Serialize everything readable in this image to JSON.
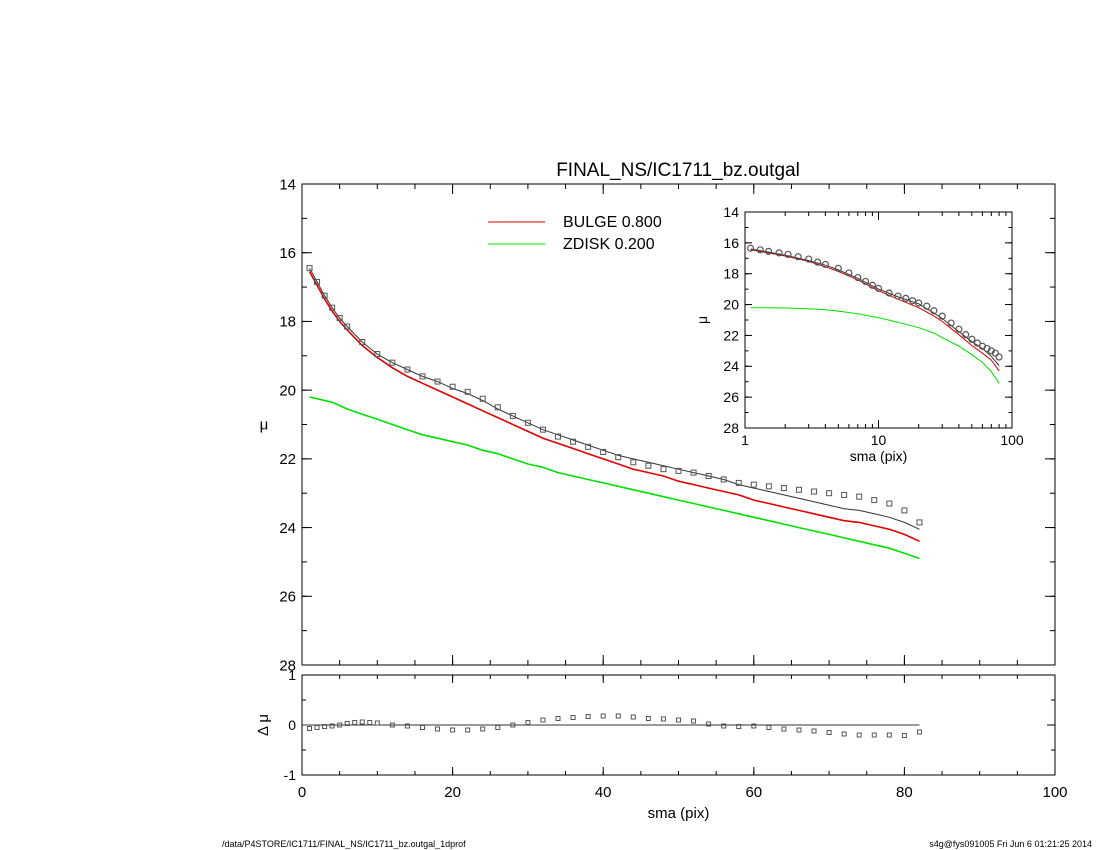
{
  "title": "FINAL_NS/IC1711_bz.outgal",
  "footer": {
    "left": "/data/P4STORE/IC1711/FINAL_NS/IC1711_bz.outgal_1dprof",
    "right": "s4g@fys091005  Fri Jun  6 01:21:25 2014"
  },
  "colors": {
    "data": "#555555",
    "model": "#333333",
    "bulge": "#e00000",
    "zdisk": "#00e000"
  },
  "chart_data": [
    {
      "name": "main-profile",
      "type": "line",
      "xlabel": "sma (pix)",
      "ylabel": "μ",
      "xlim": [
        0,
        100
      ],
      "ylim": [
        28,
        14
      ],
      "xticks": [
        0,
        20,
        40,
        60,
        80,
        100
      ],
      "yticks": [
        14,
        16,
        18,
        20,
        22,
        24,
        26,
        28
      ],
      "legend": [
        {
          "label": "BULGE  0.800",
          "color": "#e00000"
        },
        {
          "label": "ZDISK  0.200",
          "color": "#00e000"
        }
      ],
      "observed": {
        "x": [
          1,
          2,
          3,
          4,
          5,
          6,
          8,
          10,
          12,
          14,
          16,
          18,
          20,
          22,
          24,
          26,
          28,
          30,
          32,
          34,
          36,
          38,
          40,
          42,
          44,
          46,
          48,
          50,
          52,
          54,
          56,
          58,
          60,
          62,
          64,
          66,
          68,
          70,
          72,
          74,
          76,
          78,
          80,
          82
        ],
        "y": [
          16.45,
          16.85,
          17.25,
          17.6,
          17.9,
          18.15,
          18.6,
          18.95,
          19.2,
          19.4,
          19.6,
          19.75,
          19.9,
          20.05,
          20.25,
          20.5,
          20.75,
          20.95,
          21.15,
          21.35,
          21.5,
          21.65,
          21.8,
          21.95,
          22.1,
          22.2,
          22.3,
          22.35,
          22.4,
          22.5,
          22.6,
          22.7,
          22.75,
          22.8,
          22.85,
          22.9,
          22.95,
          23.0,
          23.05,
          23.1,
          23.2,
          23.3,
          23.5,
          23.85
        ]
      },
      "series": [
        {
          "key": "model",
          "x": [
            1,
            2,
            3,
            4,
            5,
            6,
            8,
            10,
            12,
            14,
            16,
            18,
            20,
            22,
            24,
            26,
            28,
            30,
            32,
            34,
            36,
            38,
            40,
            42,
            44,
            46,
            48,
            50,
            52,
            54,
            56,
            58,
            60,
            62,
            64,
            66,
            68,
            70,
            72,
            74,
            76,
            78,
            80,
            82
          ],
          "y": [
            16.45,
            16.85,
            17.25,
            17.6,
            17.9,
            18.15,
            18.6,
            18.95,
            19.2,
            19.4,
            19.6,
            19.75,
            19.95,
            20.1,
            20.3,
            20.55,
            20.75,
            20.95,
            21.15,
            21.3,
            21.45,
            21.6,
            21.75,
            21.9,
            22.0,
            22.1,
            22.2,
            22.3,
            22.4,
            22.5,
            22.6,
            22.75,
            22.85,
            22.95,
            23.05,
            23.15,
            23.25,
            23.35,
            23.45,
            23.5,
            23.6,
            23.7,
            23.85,
            24.05
          ]
        },
        {
          "key": "bulge",
          "x": [
            1,
            2,
            3,
            4,
            5,
            6,
            8,
            10,
            12,
            14,
            16,
            18,
            20,
            22,
            24,
            26,
            28,
            30,
            32,
            34,
            36,
            38,
            40,
            42,
            44,
            46,
            48,
            50,
            52,
            54,
            56,
            58,
            60,
            62,
            64,
            66,
            68,
            70,
            72,
            74,
            76,
            78,
            80,
            82
          ],
          "y": [
            16.55,
            16.95,
            17.35,
            17.7,
            18.0,
            18.25,
            18.7,
            19.05,
            19.35,
            19.6,
            19.8,
            20.0,
            20.2,
            20.4,
            20.6,
            20.8,
            21.0,
            21.2,
            21.4,
            21.55,
            21.7,
            21.85,
            22.0,
            22.15,
            22.3,
            22.4,
            22.5,
            22.65,
            22.75,
            22.85,
            22.95,
            23.05,
            23.2,
            23.3,
            23.4,
            23.5,
            23.6,
            23.7,
            23.8,
            23.85,
            23.95,
            24.05,
            24.2,
            24.4
          ]
        },
        {
          "key": "zdisk",
          "x": [
            1,
            2,
            3,
            4,
            5,
            6,
            8,
            10,
            12,
            14,
            16,
            18,
            20,
            22,
            24,
            26,
            28,
            30,
            32,
            34,
            36,
            38,
            40,
            42,
            44,
            46,
            48,
            50,
            52,
            54,
            56,
            58,
            60,
            62,
            64,
            66,
            68,
            70,
            72,
            74,
            76,
            78,
            80,
            82
          ],
          "y": [
            20.2,
            20.25,
            20.3,
            20.35,
            20.45,
            20.55,
            20.7,
            20.85,
            21.0,
            21.15,
            21.3,
            21.4,
            21.5,
            21.6,
            21.75,
            21.85,
            22.0,
            22.15,
            22.25,
            22.4,
            22.5,
            22.6,
            22.7,
            22.8,
            22.9,
            23.0,
            23.1,
            23.2,
            23.3,
            23.4,
            23.5,
            23.6,
            23.7,
            23.8,
            23.9,
            24.0,
            24.1,
            24.2,
            24.3,
            24.4,
            24.5,
            24.6,
            24.75,
            24.9
          ]
        }
      ]
    },
    {
      "name": "residual",
      "type": "scatter",
      "xlabel": "sma (pix)",
      "ylabel": "Δ μ",
      "xlim": [
        0,
        100
      ],
      "ylim": [
        -1,
        1
      ],
      "xticks": [
        0,
        20,
        40,
        60,
        80,
        100
      ],
      "yticks": [
        -1,
        0,
        1
      ],
      "x": [
        1,
        2,
        3,
        4,
        5,
        6,
        7,
        8,
        9,
        10,
        12,
        14,
        16,
        18,
        20,
        22,
        24,
        26,
        28,
        30,
        32,
        34,
        36,
        38,
        40,
        42,
        44,
        46,
        48,
        50,
        52,
        54,
        56,
        58,
        60,
        62,
        64,
        66,
        68,
        70,
        72,
        74,
        76,
        78,
        80,
        82
      ],
      "y": [
        -0.07,
        -0.05,
        -0.03,
        -0.02,
        0.0,
        0.03,
        0.05,
        0.06,
        0.05,
        0.04,
        0.0,
        -0.02,
        -0.05,
        -0.08,
        -0.1,
        -0.1,
        -0.08,
        -0.05,
        0.0,
        0.05,
        0.1,
        0.13,
        0.15,
        0.17,
        0.18,
        0.18,
        0.16,
        0.13,
        0.12,
        0.1,
        0.08,
        0.02,
        -0.02,
        -0.03,
        -0.02,
        -0.05,
        -0.08,
        -0.1,
        -0.12,
        -0.15,
        -0.18,
        -0.2,
        -0.2,
        -0.2,
        -0.21,
        -0.14
      ],
      "reference_line": 0
    },
    {
      "name": "inset-log-profile",
      "type": "line",
      "xlabel": "sma (pix)",
      "ylabel": "μ",
      "xscale": "log",
      "xlim": [
        1,
        100
      ],
      "ylim": [
        28,
        14
      ],
      "xticks": [
        1,
        10,
        100
      ],
      "yticks": [
        14,
        16,
        18,
        20,
        22,
        24,
        26,
        28
      ],
      "observed": {
        "x": [
          1.1,
          1.3,
          1.5,
          1.8,
          2.1,
          2.5,
          3,
          3.5,
          4,
          5,
          6,
          7,
          8,
          9,
          10,
          12,
          14,
          16,
          18,
          20,
          23,
          26,
          30,
          35,
          40,
          45,
          50,
          55,
          60,
          65,
          70,
          75,
          80
        ],
        "y": [
          16.35,
          16.45,
          16.55,
          16.65,
          16.75,
          16.9,
          17.05,
          17.25,
          17.4,
          17.65,
          17.95,
          18.25,
          18.5,
          18.75,
          18.95,
          19.25,
          19.45,
          19.6,
          19.75,
          19.9,
          20.1,
          20.4,
          20.75,
          21.2,
          21.6,
          21.95,
          22.25,
          22.5,
          22.7,
          22.85,
          23.0,
          23.15,
          23.4
        ]
      },
      "series": [
        {
          "key": "model",
          "x": [
            1.1,
            1.5,
            2,
            3,
            4,
            5,
            7,
            10,
            14,
            20,
            26,
            30,
            40,
            50,
            60,
            70,
            80
          ],
          "y": [
            16.4,
            16.6,
            16.8,
            17.15,
            17.45,
            17.75,
            18.3,
            19.0,
            19.5,
            19.95,
            20.55,
            20.9,
            21.75,
            22.4,
            22.85,
            23.35,
            23.95
          ]
        },
        {
          "key": "bulge",
          "x": [
            1.1,
            1.5,
            2,
            3,
            4,
            5,
            7,
            10,
            14,
            20,
            26,
            30,
            40,
            50,
            60,
            70,
            80
          ],
          "y": [
            16.45,
            16.65,
            16.85,
            17.2,
            17.55,
            17.85,
            18.4,
            19.1,
            19.65,
            20.2,
            20.75,
            21.1,
            21.95,
            22.65,
            23.15,
            23.6,
            24.3
          ]
        },
        {
          "key": "zdisk",
          "x": [
            1.1,
            1.5,
            2,
            3,
            4,
            5,
            7,
            10,
            14,
            20,
            26,
            30,
            40,
            50,
            60,
            70,
            80
          ],
          "y": [
            20.2,
            20.2,
            20.22,
            20.27,
            20.33,
            20.42,
            20.6,
            20.85,
            21.15,
            21.5,
            21.85,
            22.15,
            22.7,
            23.25,
            23.75,
            24.35,
            25.1
          ]
        }
      ]
    }
  ]
}
